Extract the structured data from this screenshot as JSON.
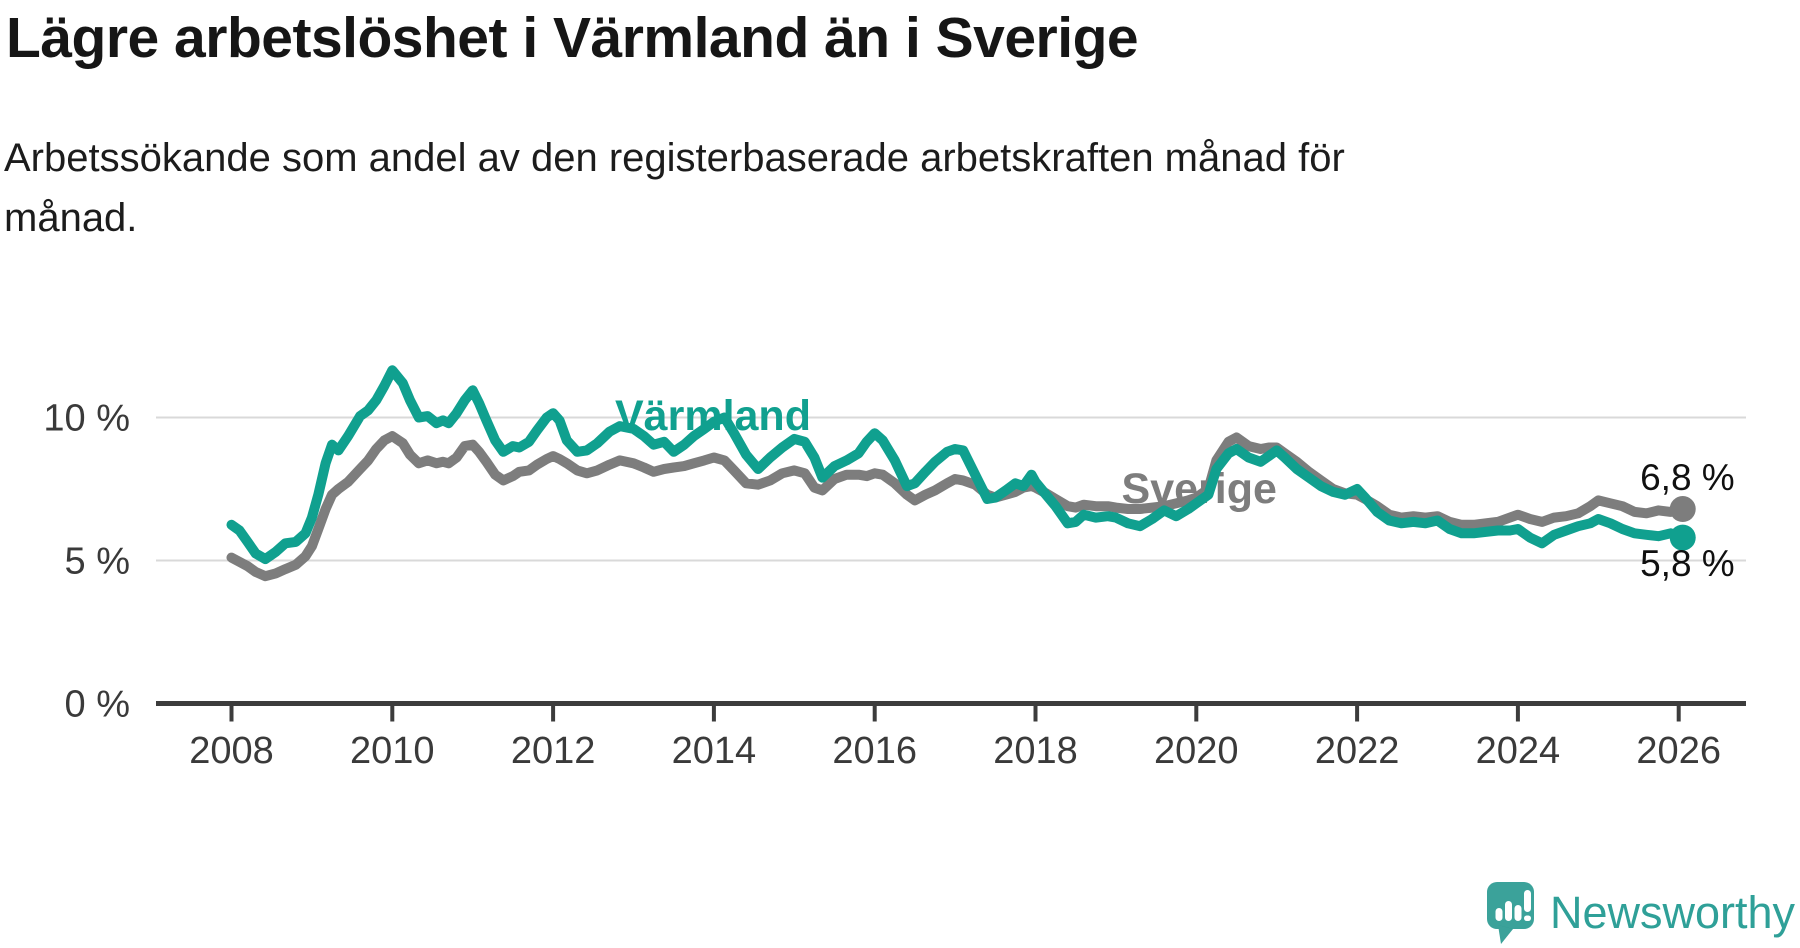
{
  "header": {
    "title": "Lägre arbetslöshet i Värmland än i Sverige",
    "subtitle": "Arbetssökande som andel av den registerbaserade arbetskraften månad för månad."
  },
  "branding": {
    "logo_text": "Newsworthy",
    "logo_color": "#3ba29a",
    "text_color": "#2fa098"
  },
  "chart_data": {
    "type": "line",
    "unit": "%",
    "grid": "horizontal-only",
    "legend_position": "inline-labels",
    "x_axis": {
      "ticks": [
        2008,
        2010,
        2012,
        2014,
        2016,
        2018,
        2020,
        2022,
        2024,
        2026
      ],
      "range": [
        2008,
        2026.3
      ]
    },
    "y_axis": {
      "labels": [
        {
          "value": 10,
          "label": "10 %"
        },
        {
          "value": 5,
          "label": "5 %"
        },
        {
          "value": 0,
          "label": "0 %"
        }
      ],
      "gridlines": [
        5,
        10
      ],
      "range": [
        0,
        12.5
      ]
    },
    "style": {
      "grid_color": "#d9d9d9",
      "axis_color": "#3c3c3c"
    },
    "series": [
      {
        "name": "Värmland",
        "color": "#10a08f",
        "end_label": "5,8 %",
        "end_value": 5.8,
        "label_anchor": [
          2012.77,
          9.56
        ],
        "end_label_anchor": [
          2025.52,
          4.46
        ],
        "points": [
          [
            2008.0,
            6.25
          ],
          [
            2008.1,
            6.05
          ],
          [
            2008.2,
            5.65
          ],
          [
            2008.3,
            5.25
          ],
          [
            2008.42,
            5.05
          ],
          [
            2008.55,
            5.3
          ],
          [
            2008.67,
            5.6
          ],
          [
            2008.8,
            5.65
          ],
          [
            2008.92,
            5.95
          ],
          [
            2009.0,
            6.5
          ],
          [
            2009.08,
            7.3
          ],
          [
            2009.17,
            8.4
          ],
          [
            2009.25,
            9.05
          ],
          [
            2009.33,
            8.85
          ],
          [
            2009.45,
            9.35
          ],
          [
            2009.6,
            10.05
          ],
          [
            2009.7,
            10.25
          ],
          [
            2009.8,
            10.6
          ],
          [
            2009.9,
            11.1
          ],
          [
            2010.0,
            11.65
          ],
          [
            2010.13,
            11.2
          ],
          [
            2010.22,
            10.6
          ],
          [
            2010.33,
            10.0
          ],
          [
            2010.44,
            10.05
          ],
          [
            2010.55,
            9.8
          ],
          [
            2010.63,
            9.9
          ],
          [
            2010.7,
            9.8
          ],
          [
            2010.8,
            10.15
          ],
          [
            2010.9,
            10.6
          ],
          [
            2011.0,
            10.95
          ],
          [
            2011.08,
            10.5
          ],
          [
            2011.17,
            9.9
          ],
          [
            2011.28,
            9.2
          ],
          [
            2011.38,
            8.8
          ],
          [
            2011.5,
            9.0
          ],
          [
            2011.58,
            8.95
          ],
          [
            2011.7,
            9.15
          ],
          [
            2011.8,
            9.55
          ],
          [
            2011.92,
            10.0
          ],
          [
            2012.0,
            10.15
          ],
          [
            2012.08,
            9.9
          ],
          [
            2012.17,
            9.2
          ],
          [
            2012.3,
            8.8
          ],
          [
            2012.42,
            8.85
          ],
          [
            2012.55,
            9.1
          ],
          [
            2012.7,
            9.5
          ],
          [
            2012.83,
            9.7
          ],
          [
            2013.0,
            9.6
          ],
          [
            2013.13,
            9.35
          ],
          [
            2013.25,
            9.05
          ],
          [
            2013.38,
            9.15
          ],
          [
            2013.5,
            8.8
          ],
          [
            2013.63,
            9.05
          ],
          [
            2013.75,
            9.35
          ],
          [
            2013.88,
            9.6
          ],
          [
            2014.0,
            9.85
          ],
          [
            2014.13,
            10.0
          ],
          [
            2014.25,
            9.45
          ],
          [
            2014.4,
            8.7
          ],
          [
            2014.55,
            8.2
          ],
          [
            2014.7,
            8.6
          ],
          [
            2014.85,
            8.95
          ],
          [
            2015.0,
            9.25
          ],
          [
            2015.13,
            9.15
          ],
          [
            2015.25,
            8.6
          ],
          [
            2015.35,
            7.9
          ],
          [
            2015.5,
            8.3
          ],
          [
            2015.65,
            8.5
          ],
          [
            2015.8,
            8.75
          ],
          [
            2015.9,
            9.15
          ],
          [
            2016.0,
            9.45
          ],
          [
            2016.1,
            9.2
          ],
          [
            2016.25,
            8.5
          ],
          [
            2016.4,
            7.6
          ],
          [
            2016.5,
            7.7
          ],
          [
            2016.63,
            8.1
          ],
          [
            2016.75,
            8.45
          ],
          [
            2016.9,
            8.8
          ],
          [
            2017.0,
            8.9
          ],
          [
            2017.1,
            8.85
          ],
          [
            2017.25,
            8.0
          ],
          [
            2017.4,
            7.15
          ],
          [
            2017.5,
            7.2
          ],
          [
            2017.63,
            7.45
          ],
          [
            2017.75,
            7.7
          ],
          [
            2017.85,
            7.6
          ],
          [
            2017.95,
            8.0
          ],
          [
            2018.0,
            7.75
          ],
          [
            2018.13,
            7.3
          ],
          [
            2018.25,
            6.9
          ],
          [
            2018.4,
            6.3
          ],
          [
            2018.5,
            6.35
          ],
          [
            2018.6,
            6.6
          ],
          [
            2018.75,
            6.5
          ],
          [
            2018.9,
            6.55
          ],
          [
            2019.0,
            6.5
          ],
          [
            2019.15,
            6.3
          ],
          [
            2019.3,
            6.2
          ],
          [
            2019.45,
            6.45
          ],
          [
            2019.6,
            6.75
          ],
          [
            2019.75,
            6.55
          ],
          [
            2019.9,
            6.8
          ],
          [
            2020.0,
            7.0
          ],
          [
            2020.15,
            7.3
          ],
          [
            2020.25,
            8.2
          ],
          [
            2020.4,
            8.75
          ],
          [
            2020.5,
            8.9
          ],
          [
            2020.65,
            8.6
          ],
          [
            2020.8,
            8.45
          ],
          [
            2020.9,
            8.65
          ],
          [
            2021.0,
            8.85
          ],
          [
            2021.1,
            8.6
          ],
          [
            2021.25,
            8.2
          ],
          [
            2021.4,
            7.9
          ],
          [
            2021.55,
            7.6
          ],
          [
            2021.7,
            7.4
          ],
          [
            2021.85,
            7.3
          ],
          [
            2022.0,
            7.5
          ],
          [
            2022.1,
            7.2
          ],
          [
            2022.25,
            6.7
          ],
          [
            2022.4,
            6.4
          ],
          [
            2022.55,
            6.3
          ],
          [
            2022.7,
            6.35
          ],
          [
            2022.85,
            6.3
          ],
          [
            2023.0,
            6.4
          ],
          [
            2023.15,
            6.1
          ],
          [
            2023.3,
            5.95
          ],
          [
            2023.45,
            5.95
          ],
          [
            2023.6,
            6.0
          ],
          [
            2023.75,
            6.05
          ],
          [
            2023.9,
            6.05
          ],
          [
            2024.0,
            6.1
          ],
          [
            2024.15,
            5.8
          ],
          [
            2024.3,
            5.6
          ],
          [
            2024.45,
            5.9
          ],
          [
            2024.6,
            6.05
          ],
          [
            2024.75,
            6.2
          ],
          [
            2024.9,
            6.3
          ],
          [
            2025.0,
            6.45
          ],
          [
            2025.15,
            6.3
          ],
          [
            2025.3,
            6.1
          ],
          [
            2025.45,
            5.95
          ],
          [
            2025.6,
            5.9
          ],
          [
            2025.75,
            5.85
          ],
          [
            2025.9,
            5.95
          ],
          [
            2026.05,
            5.8
          ]
        ]
      },
      {
        "name": "Sverige",
        "color": "#7d7d7d",
        "end_label": "6,8 %",
        "end_value": 6.8,
        "label_anchor": [
          2019.07,
          7.01
        ],
        "end_label_anchor": [
          2025.52,
          7.47
        ],
        "points": [
          [
            2008.0,
            5.1
          ],
          [
            2008.1,
            4.95
          ],
          [
            2008.2,
            4.8
          ],
          [
            2008.3,
            4.6
          ],
          [
            2008.42,
            4.45
          ],
          [
            2008.55,
            4.55
          ],
          [
            2008.67,
            4.7
          ],
          [
            2008.8,
            4.85
          ],
          [
            2008.92,
            5.15
          ],
          [
            2009.0,
            5.5
          ],
          [
            2009.08,
            6.1
          ],
          [
            2009.17,
            6.8
          ],
          [
            2009.25,
            7.3
          ],
          [
            2009.33,
            7.5
          ],
          [
            2009.45,
            7.75
          ],
          [
            2009.6,
            8.2
          ],
          [
            2009.7,
            8.5
          ],
          [
            2009.8,
            8.9
          ],
          [
            2009.9,
            9.2
          ],
          [
            2010.0,
            9.35
          ],
          [
            2010.13,
            9.1
          ],
          [
            2010.22,
            8.7
          ],
          [
            2010.33,
            8.4
          ],
          [
            2010.44,
            8.5
          ],
          [
            2010.55,
            8.4
          ],
          [
            2010.63,
            8.45
          ],
          [
            2010.7,
            8.4
          ],
          [
            2010.8,
            8.6
          ],
          [
            2010.9,
            9.0
          ],
          [
            2011.0,
            9.05
          ],
          [
            2011.08,
            8.8
          ],
          [
            2011.17,
            8.45
          ],
          [
            2011.28,
            8.0
          ],
          [
            2011.38,
            7.8
          ],
          [
            2011.5,
            7.95
          ],
          [
            2011.58,
            8.1
          ],
          [
            2011.7,
            8.15
          ],
          [
            2011.8,
            8.35
          ],
          [
            2011.92,
            8.55
          ],
          [
            2012.0,
            8.65
          ],
          [
            2012.08,
            8.55
          ],
          [
            2012.17,
            8.4
          ],
          [
            2012.3,
            8.15
          ],
          [
            2012.42,
            8.05
          ],
          [
            2012.55,
            8.15
          ],
          [
            2012.7,
            8.35
          ],
          [
            2012.83,
            8.5
          ],
          [
            2013.0,
            8.4
          ],
          [
            2013.13,
            8.25
          ],
          [
            2013.25,
            8.1
          ],
          [
            2013.38,
            8.2
          ],
          [
            2013.5,
            8.25
          ],
          [
            2013.63,
            8.3
          ],
          [
            2013.75,
            8.4
          ],
          [
            2013.88,
            8.5
          ],
          [
            2014.0,
            8.6
          ],
          [
            2014.13,
            8.5
          ],
          [
            2014.25,
            8.15
          ],
          [
            2014.4,
            7.7
          ],
          [
            2014.55,
            7.65
          ],
          [
            2014.7,
            7.8
          ],
          [
            2014.85,
            8.05
          ],
          [
            2015.0,
            8.15
          ],
          [
            2015.13,
            8.05
          ],
          [
            2015.25,
            7.55
          ],
          [
            2015.35,
            7.45
          ],
          [
            2015.5,
            7.85
          ],
          [
            2015.65,
            8.0
          ],
          [
            2015.8,
            8.0
          ],
          [
            2015.9,
            7.95
          ],
          [
            2016.0,
            8.05
          ],
          [
            2016.1,
            8.0
          ],
          [
            2016.25,
            7.7
          ],
          [
            2016.4,
            7.3
          ],
          [
            2016.5,
            7.1
          ],
          [
            2016.63,
            7.3
          ],
          [
            2016.75,
            7.45
          ],
          [
            2016.9,
            7.7
          ],
          [
            2017.0,
            7.85
          ],
          [
            2017.1,
            7.8
          ],
          [
            2017.25,
            7.65
          ],
          [
            2017.4,
            7.3
          ],
          [
            2017.5,
            7.2
          ],
          [
            2017.63,
            7.3
          ],
          [
            2017.75,
            7.4
          ],
          [
            2017.85,
            7.55
          ],
          [
            2017.95,
            7.6
          ],
          [
            2018.0,
            7.55
          ],
          [
            2018.13,
            7.35
          ],
          [
            2018.25,
            7.15
          ],
          [
            2018.4,
            6.9
          ],
          [
            2018.5,
            6.85
          ],
          [
            2018.6,
            6.95
          ],
          [
            2018.75,
            6.9
          ],
          [
            2018.9,
            6.9
          ],
          [
            2019.0,
            6.85
          ],
          [
            2019.15,
            6.8
          ],
          [
            2019.3,
            6.8
          ],
          [
            2019.45,
            6.85
          ],
          [
            2019.6,
            6.9
          ],
          [
            2019.75,
            7.0
          ],
          [
            2019.9,
            7.1
          ],
          [
            2020.0,
            7.2
          ],
          [
            2020.15,
            7.5
          ],
          [
            2020.25,
            8.5
          ],
          [
            2020.4,
            9.15
          ],
          [
            2020.5,
            9.3
          ],
          [
            2020.65,
            9.0
          ],
          [
            2020.8,
            8.9
          ],
          [
            2020.9,
            8.95
          ],
          [
            2021.0,
            8.95
          ],
          [
            2021.1,
            8.75
          ],
          [
            2021.25,
            8.45
          ],
          [
            2021.4,
            8.1
          ],
          [
            2021.55,
            7.8
          ],
          [
            2021.7,
            7.5
          ],
          [
            2021.85,
            7.35
          ],
          [
            2022.0,
            7.3
          ],
          [
            2022.1,
            7.15
          ],
          [
            2022.25,
            6.9
          ],
          [
            2022.4,
            6.6
          ],
          [
            2022.55,
            6.5
          ],
          [
            2022.7,
            6.55
          ],
          [
            2022.85,
            6.5
          ],
          [
            2023.0,
            6.55
          ],
          [
            2023.15,
            6.35
          ],
          [
            2023.3,
            6.25
          ],
          [
            2023.45,
            6.25
          ],
          [
            2023.6,
            6.3
          ],
          [
            2023.75,
            6.35
          ],
          [
            2023.9,
            6.5
          ],
          [
            2024.0,
            6.6
          ],
          [
            2024.15,
            6.45
          ],
          [
            2024.3,
            6.35
          ],
          [
            2024.45,
            6.5
          ],
          [
            2024.6,
            6.55
          ],
          [
            2024.75,
            6.65
          ],
          [
            2024.9,
            6.9
          ],
          [
            2025.0,
            7.1
          ],
          [
            2025.15,
            7.0
          ],
          [
            2025.3,
            6.9
          ],
          [
            2025.45,
            6.7
          ],
          [
            2025.6,
            6.65
          ],
          [
            2025.75,
            6.75
          ],
          [
            2025.9,
            6.7
          ],
          [
            2026.05,
            6.8
          ]
        ]
      }
    ]
  }
}
